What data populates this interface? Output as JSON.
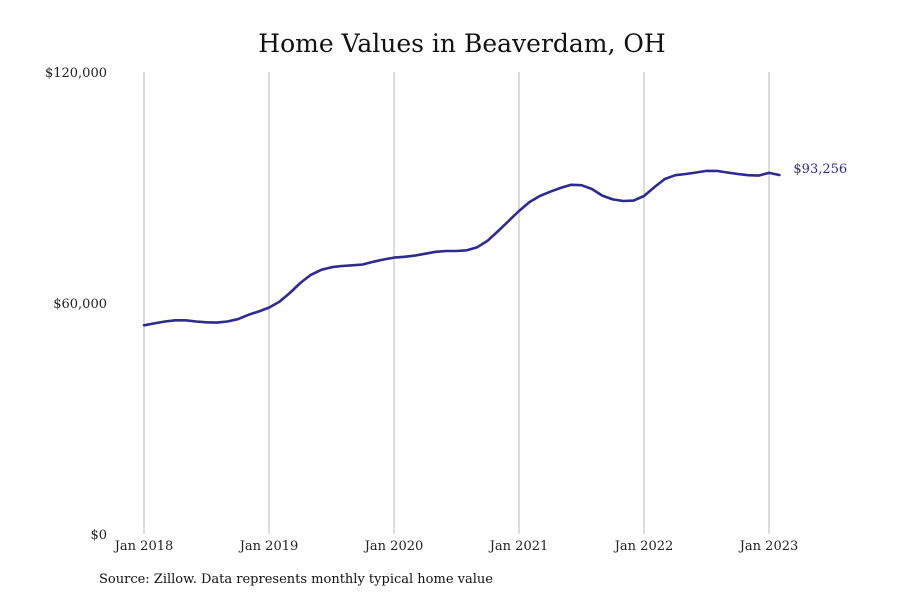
{
  "chart_data": {
    "type": "line",
    "title": "Home Values in Beaverdam, OH",
    "ylim": [
      0,
      120000
    ],
    "yticks": [
      {
        "value": 0,
        "label": "$0"
      },
      {
        "value": 60000,
        "label": "$60,000"
      },
      {
        "value": 120000,
        "label": "$120,000"
      }
    ],
    "xticks": [
      {
        "value": "2018-01",
        "label": "Jan 2018"
      },
      {
        "value": "2019-01",
        "label": "Jan 2019"
      },
      {
        "value": "2020-01",
        "label": "Jan 2020"
      },
      {
        "value": "2021-01",
        "label": "Jan 2021"
      },
      {
        "value": "2022-01",
        "label": "Jan 2022"
      },
      {
        "value": "2023-01",
        "label": "Jan 2023"
      }
    ],
    "grid": "vertical",
    "color": "#2e2a8f",
    "series": [
      {
        "x": [
          "2018-01",
          "2018-02",
          "2018-03",
          "2018-04",
          "2018-05",
          "2018-06",
          "2018-07",
          "2018-08",
          "2018-09",
          "2018-10",
          "2018-11",
          "2018-12",
          "2019-01",
          "2019-02",
          "2019-03",
          "2019-04",
          "2019-05",
          "2019-06",
          "2019-07",
          "2019-08",
          "2019-09",
          "2019-10",
          "2019-11",
          "2019-12",
          "2020-01",
          "2020-02",
          "2020-03",
          "2020-04",
          "2020-05",
          "2020-06",
          "2020-07",
          "2020-08",
          "2020-09",
          "2020-10",
          "2020-11",
          "2020-12",
          "2021-01",
          "2021-02",
          "2021-03",
          "2021-04",
          "2021-05",
          "2021-06",
          "2021-07",
          "2021-08",
          "2021-09",
          "2021-10",
          "2021-11",
          "2021-12",
          "2022-01",
          "2022-02",
          "2022-03",
          "2022-04",
          "2022-05",
          "2022-06",
          "2022-07",
          "2022-08",
          "2022-09",
          "2022-10",
          "2022-11",
          "2022-12",
          "2023-01",
          "2023-02"
        ],
        "values": [
          54200,
          54700,
          55200,
          55500,
          55500,
          55200,
          55000,
          54900,
          55200,
          55800,
          56900,
          57800,
          58800,
          60300,
          62600,
          65200,
          67300,
          68600,
          69300,
          69600,
          69800,
          70000,
          70700,
          71300,
          71800,
          72000,
          72300,
          72800,
          73300,
          73500,
          73500,
          73700,
          74500,
          76200,
          78700,
          81300,
          83900,
          86200,
          87800,
          88900,
          89900,
          90700,
          90600,
          89600,
          87900,
          86900,
          86500,
          86600,
          87800,
          90100,
          92200,
          93200,
          93500,
          93900,
          94300,
          94300,
          93900,
          93500,
          93200,
          93100,
          93800,
          93256
        ]
      }
    ],
    "end_label": "$93,256"
  },
  "source": "Source: Zillow. Data represents monthly typical home value"
}
